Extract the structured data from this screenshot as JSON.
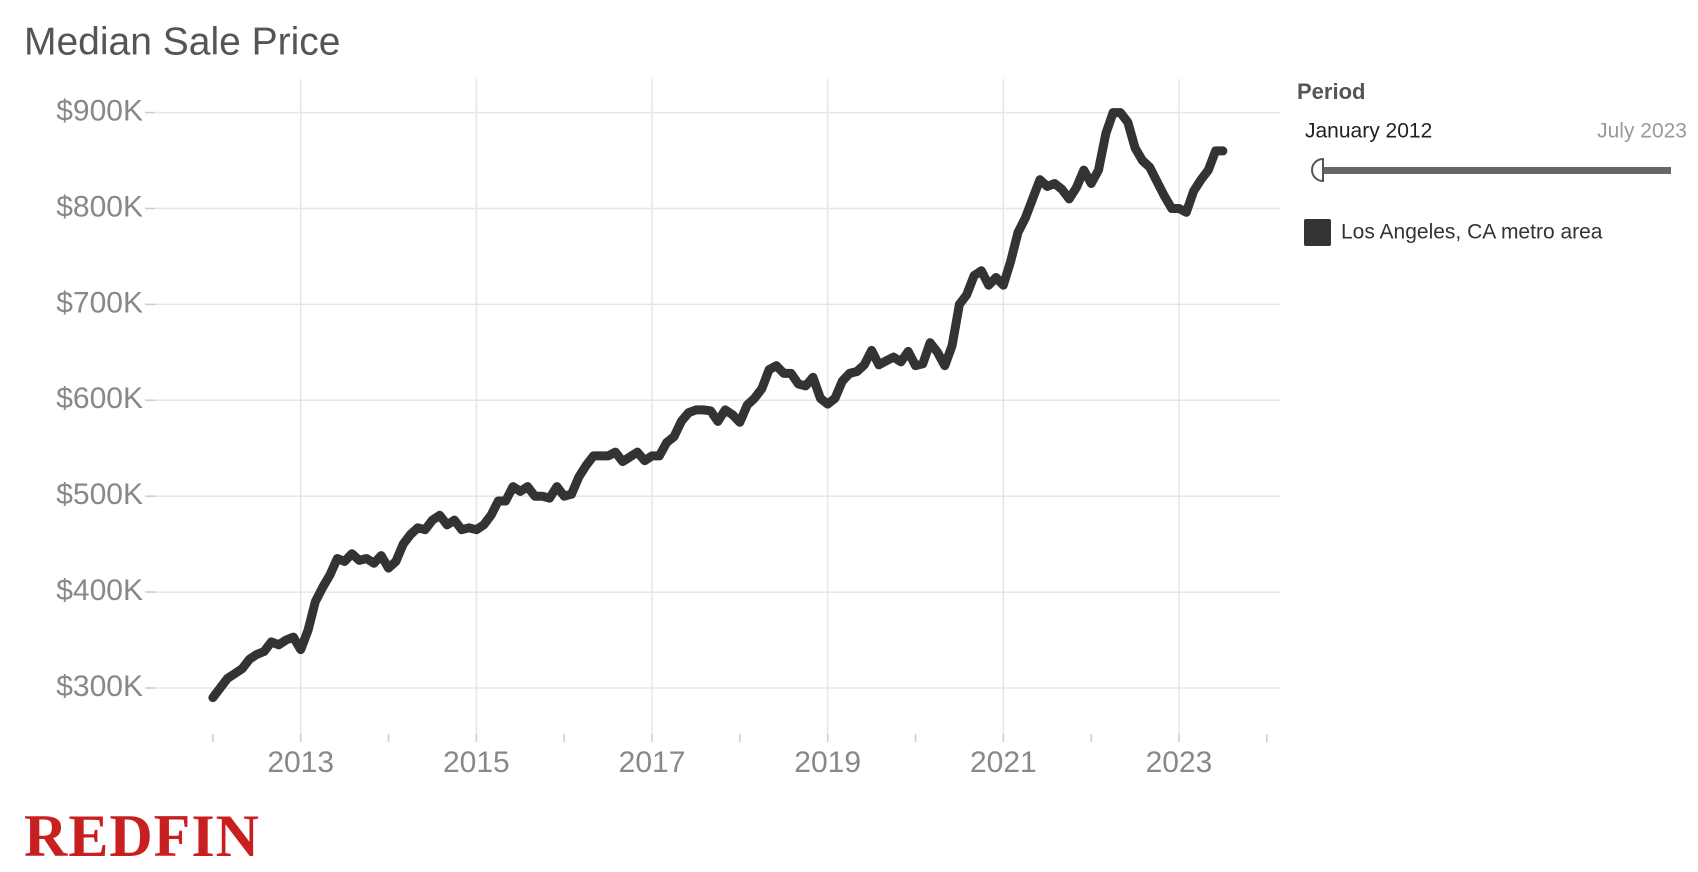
{
  "chart_data": {
    "type": "line",
    "title": "Median Sale Price",
    "x": [
      "2012-01",
      "2012-02",
      "2012-03",
      "2012-04",
      "2012-05",
      "2012-06",
      "2012-07",
      "2012-08",
      "2012-09",
      "2012-10",
      "2012-11",
      "2012-12",
      "2013-01",
      "2013-02",
      "2013-03",
      "2013-04",
      "2013-05",
      "2013-06",
      "2013-07",
      "2013-08",
      "2013-09",
      "2013-10",
      "2013-11",
      "2013-12",
      "2014-01",
      "2014-02",
      "2014-03",
      "2014-04",
      "2014-05",
      "2014-06",
      "2014-07",
      "2014-08",
      "2014-09",
      "2014-10",
      "2014-11",
      "2014-12",
      "2015-01",
      "2015-02",
      "2015-03",
      "2015-04",
      "2015-05",
      "2015-06",
      "2015-07",
      "2015-08",
      "2015-09",
      "2015-10",
      "2015-11",
      "2015-12",
      "2016-01",
      "2016-02",
      "2016-03",
      "2016-04",
      "2016-05",
      "2016-06",
      "2016-07",
      "2016-08",
      "2016-09",
      "2016-10",
      "2016-11",
      "2016-12",
      "2017-01",
      "2017-02",
      "2017-03",
      "2017-04",
      "2017-05",
      "2017-06",
      "2017-07",
      "2017-08",
      "2017-09",
      "2017-10",
      "2017-11",
      "2017-12",
      "2018-01",
      "2018-02",
      "2018-03",
      "2018-04",
      "2018-05",
      "2018-06",
      "2018-07",
      "2018-08",
      "2018-09",
      "2018-10",
      "2018-11",
      "2018-12",
      "2019-01",
      "2019-02",
      "2019-03",
      "2019-04",
      "2019-05",
      "2019-06",
      "2019-07",
      "2019-08",
      "2019-09",
      "2019-10",
      "2019-11",
      "2019-12",
      "2020-01",
      "2020-02",
      "2020-03",
      "2020-04",
      "2020-05",
      "2020-06",
      "2020-07",
      "2020-08",
      "2020-09",
      "2020-10",
      "2020-11",
      "2020-12",
      "2021-01",
      "2021-02",
      "2021-03",
      "2021-04",
      "2021-05",
      "2021-06",
      "2021-07",
      "2021-08",
      "2021-09",
      "2021-10",
      "2021-11",
      "2021-12",
      "2022-01",
      "2022-02",
      "2022-03",
      "2022-04",
      "2022-05",
      "2022-06",
      "2022-07",
      "2022-08",
      "2022-09",
      "2022-10",
      "2022-11",
      "2022-12",
      "2023-01",
      "2023-02",
      "2023-03",
      "2023-04",
      "2023-05",
      "2023-06",
      "2023-07"
    ],
    "series": [
      {
        "name": "Los Angeles, CA metro area",
        "color": "#333333",
        "values": [
          290000,
          300000,
          310000,
          315000,
          320000,
          330000,
          335000,
          338000,
          348000,
          345000,
          350000,
          353000,
          340000,
          360000,
          390000,
          405000,
          418000,
          435000,
          432000,
          440000,
          433000,
          435000,
          430000,
          438000,
          425000,
          432000,
          450000,
          460000,
          467000,
          465000,
          475000,
          480000,
          470000,
          475000,
          465000,
          467000,
          465000,
          470000,
          480000,
          495000,
          495000,
          510000,
          505000,
          510000,
          500000,
          500000,
          498000,
          510000,
          500000,
          502000,
          520000,
          532000,
          542000,
          542000,
          542000,
          546000,
          536000,
          541000,
          546000,
          537000,
          542000,
          542000,
          556000,
          562000,
          578000,
          587000,
          590000,
          590000,
          589000,
          578000,
          590000,
          585000,
          577000,
          595000,
          602000,
          612000,
          632000,
          636000,
          628000,
          628000,
          617000,
          615000,
          624000,
          602000,
          596000,
          602000,
          620000,
          628000,
          630000,
          637000,
          652000,
          637000,
          641000,
          645000,
          640000,
          651000,
          636000,
          638000,
          660000,
          650000,
          636000,
          657000,
          700000,
          710000,
          730000,
          735000,
          720000,
          728000,
          720000,
          745000,
          775000,
          790000,
          810000,
          830000,
          823000,
          826000,
          820000,
          810000,
          822000,
          840000,
          826000,
          840000,
          878000,
          900000,
          900000,
          890000,
          863000,
          850000,
          843000,
          828000,
          813000,
          800000,
          800000,
          796000,
          818000,
          830000,
          840000,
          860000,
          860000
        ]
      }
    ],
    "xlim": [
      2011.25,
      2024.15
    ],
    "xticks": [
      2013,
      2015,
      2017,
      2019,
      2021,
      2023
    ],
    "xminorticks": [
      2012,
      2014,
      2016,
      2018,
      2020,
      2022,
      2024
    ],
    "ylim": [
      252000,
      935000
    ],
    "yticks": [
      {
        "value": 300000,
        "label": "$300K"
      },
      {
        "value": 400000,
        "label": "$400K"
      },
      {
        "value": 500000,
        "label": "$500K"
      },
      {
        "value": 600000,
        "label": "$600K"
      },
      {
        "value": 700000,
        "label": "$700K"
      },
      {
        "value": 800000,
        "label": "$800K"
      },
      {
        "value": 900000,
        "label": "$900K"
      }
    ],
    "grid": true,
    "period": {
      "label": "Period",
      "start": "January 2012",
      "end": "July 2023"
    },
    "logo": "REDFIN"
  }
}
